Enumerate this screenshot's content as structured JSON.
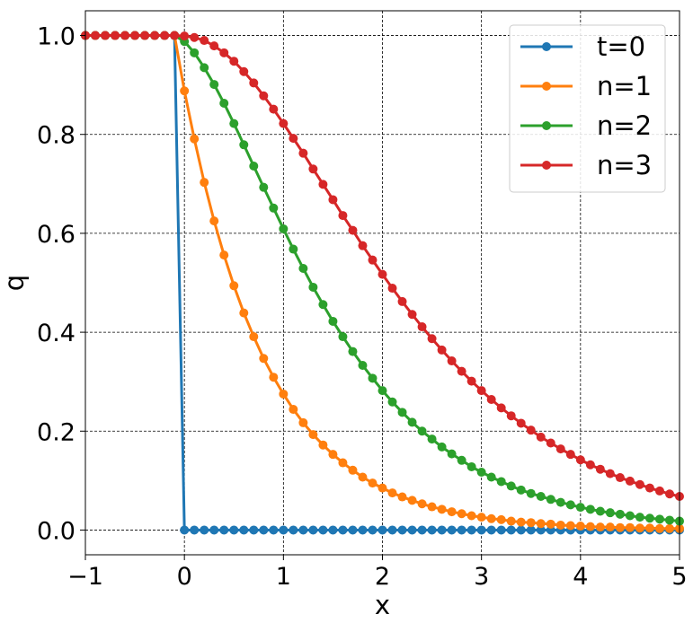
{
  "chart_data": {
    "type": "line",
    "title": "",
    "xlabel": "x",
    "ylabel": "q",
    "xlim": [
      -1,
      5
    ],
    "ylim": [
      -0.05,
      1.05
    ],
    "grid": true,
    "legend_position": "top-right",
    "x_ticks": [
      {
        "value": -1,
        "label": "−1"
      },
      {
        "value": 0,
        "label": "0"
      },
      {
        "value": 1,
        "label": "1"
      },
      {
        "value": 2,
        "label": "2"
      },
      {
        "value": 3,
        "label": "3"
      },
      {
        "value": 4,
        "label": "4"
      },
      {
        "value": 5,
        "label": "5"
      }
    ],
    "y_ticks": [
      {
        "value": 0.0,
        "label": "0.0"
      },
      {
        "value": 0.2,
        "label": "0.2"
      },
      {
        "value": 0.4,
        "label": "0.4"
      },
      {
        "value": 0.6,
        "label": "0.6"
      },
      {
        "value": 0.8,
        "label": "0.8"
      },
      {
        "value": 1.0,
        "label": "1.0"
      }
    ],
    "x": [
      -1.0,
      -0.9,
      -0.8,
      -0.7,
      -0.6,
      -0.5,
      -0.4,
      -0.3,
      -0.2,
      -0.1,
      0.0,
      0.1,
      0.2,
      0.3,
      0.4,
      0.5,
      0.6,
      0.7,
      0.8,
      0.9,
      1.0,
      1.1,
      1.2,
      1.3,
      1.4,
      1.5,
      1.6,
      1.7,
      1.8,
      1.9,
      2.0,
      2.1,
      2.2,
      2.3,
      2.4,
      2.5,
      2.6,
      2.7,
      2.8,
      2.9,
      3.0,
      3.1,
      3.2,
      3.3,
      3.4,
      3.5,
      3.6,
      3.7,
      3.8,
      3.9,
      4.0,
      4.1,
      4.2,
      4.3,
      4.4,
      4.5,
      4.6,
      4.7,
      4.8,
      4.9,
      5.0
    ],
    "series": [
      {
        "name": "t=0",
        "color": "#1f77b4",
        "values": [
          1,
          1,
          1,
          1,
          1,
          1,
          1,
          1,
          1,
          1,
          0,
          0,
          0,
          0,
          0,
          0,
          0,
          0,
          0,
          0,
          0,
          0,
          0,
          0,
          0,
          0,
          0,
          0,
          0,
          0,
          0,
          0,
          0,
          0,
          0,
          0,
          0,
          0,
          0,
          0,
          0,
          0,
          0,
          0,
          0,
          0,
          0,
          0,
          0,
          0,
          0,
          0,
          0,
          0,
          0,
          0,
          0,
          0,
          0,
          0,
          0
        ]
      },
      {
        "name": "n=1",
        "color": "#ff7f0e",
        "values": [
          1,
          1,
          1,
          1,
          1,
          1,
          1,
          1,
          1,
          1,
          0.888,
          0.791,
          0.703,
          0.625,
          0.556,
          0.494,
          0.439,
          0.391,
          0.347,
          0.309,
          0.275,
          0.244,
          0.217,
          0.193,
          0.172,
          0.153,
          0.136,
          0.121,
          0.107,
          0.095,
          0.085,
          0.075,
          0.067,
          0.06,
          0.053,
          0.047,
          0.042,
          0.037,
          0.033,
          0.029,
          0.026,
          0.023,
          0.021,
          0.018,
          0.016,
          0.015,
          0.013,
          0.012,
          0.01,
          0.009,
          0.008,
          0.007,
          0.006,
          0.006,
          0.005,
          0.005,
          0.004,
          0.004,
          0.003,
          0.003,
          0.003
        ]
      },
      {
        "name": "n=2",
        "color": "#2ca02c",
        "values": [
          1,
          1,
          1,
          1,
          1,
          1,
          1,
          1,
          1,
          1,
          0.988,
          0.965,
          0.935,
          0.901,
          0.863,
          0.822,
          0.779,
          0.736,
          0.693,
          0.651,
          0.609,
          0.568,
          0.529,
          0.491,
          0.456,
          0.422,
          0.391,
          0.361,
          0.333,
          0.307,
          0.282,
          0.259,
          0.238,
          0.218,
          0.2,
          0.184,
          0.168,
          0.154,
          0.141,
          0.128,
          0.117,
          0.107,
          0.098,
          0.089,
          0.081,
          0.074,
          0.068,
          0.062,
          0.056,
          0.051,
          0.046,
          0.042,
          0.038,
          0.035,
          0.032,
          0.029,
          0.026,
          0.024,
          0.022,
          0.02,
          0.018
        ]
      },
      {
        "name": "n=3",
        "color": "#d62728",
        "values": [
          1,
          1,
          1,
          1,
          1,
          1,
          1,
          1,
          1,
          1,
          0.999,
          0.996,
          0.99,
          0.979,
          0.965,
          0.948,
          0.927,
          0.904,
          0.878,
          0.851,
          0.822,
          0.792,
          0.762,
          0.73,
          0.699,
          0.668,
          0.636,
          0.606,
          0.575,
          0.546,
          0.517,
          0.489,
          0.462,
          0.436,
          0.411,
          0.387,
          0.364,
          0.342,
          0.321,
          0.301,
          0.282,
          0.264,
          0.247,
          0.231,
          0.216,
          0.202,
          0.188,
          0.176,
          0.164,
          0.153,
          0.142,
          0.132,
          0.123,
          0.114,
          0.106,
          0.099,
          0.092,
          0.085,
          0.079,
          0.073,
          0.068
        ]
      }
    ]
  }
}
